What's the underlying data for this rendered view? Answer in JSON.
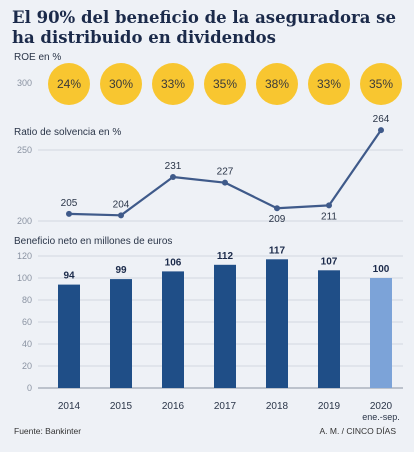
{
  "title": "El 90% del beneficio de la aseguradora se ha distribuido en dividendos",
  "source": "Fuente: Bankinter",
  "credit": "A. M. / CINCO DÍAS",
  "colors": {
    "roe_circle": "#f8c630",
    "line": "#3f5a8a",
    "bar": "#1f4e87",
    "bar_highlight": "#7ca3d8",
    "grid": "#c9ced8",
    "axis_text": "#8a93a2"
  },
  "chart_data": [
    {
      "type": "table",
      "title": "ROE en %",
      "categories": [
        "2014",
        "2015",
        "2016",
        "2017",
        "2018",
        "2019",
        "2020 ene.-sep."
      ],
      "values": [
        24,
        30,
        33,
        35,
        38,
        33,
        35
      ],
      "labels": [
        "24%",
        "30%",
        "33%",
        "35%",
        "38%",
        "33%",
        "35%"
      ],
      "yticks": [
        300
      ]
    },
    {
      "type": "line",
      "title": "Ratio de solvencia en %",
      "categories": [
        "2014",
        "2015",
        "2016",
        "2017",
        "2018",
        "2019",
        "2020 ene.-sep."
      ],
      "values": [
        205,
        204,
        231,
        227,
        209,
        211,
        264
      ],
      "yticks": [
        200,
        250
      ],
      "grid": true
    },
    {
      "type": "bar",
      "title": "Beneficio neto en millones de euros",
      "categories": [
        "2014",
        "2015",
        "2016",
        "2017",
        "2018",
        "2019",
        "2020"
      ],
      "category_sublabels": [
        "",
        "",
        "",
        "",
        "",
        "",
        "ene.-sep."
      ],
      "values": [
        94,
        99,
        106,
        112,
        117,
        107,
        100
      ],
      "yticks": [
        0,
        20,
        40,
        60,
        80,
        100,
        120
      ],
      "ylim": [
        0,
        120
      ],
      "grid": true
    }
  ]
}
